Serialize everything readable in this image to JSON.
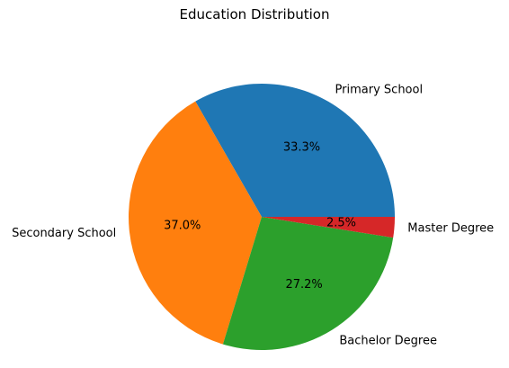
{
  "chart_data": {
    "type": "pie",
    "title": "Education Distribution",
    "categories": [
      "Primary School",
      "Secondary School",
      "Bachelor Degree",
      "Master Degree"
    ],
    "values": [
      33.3,
      37.0,
      27.2,
      2.5
    ],
    "value_labels": [
      "33.3%",
      "37.0%",
      "27.2%",
      "2.5%"
    ],
    "colors": [
      "#1f77b4",
      "#ff7f0e",
      "#2ca02c",
      "#d62728"
    ],
    "start_angle_deg": 0,
    "direction": "counterclockwise",
    "legend": "none"
  }
}
